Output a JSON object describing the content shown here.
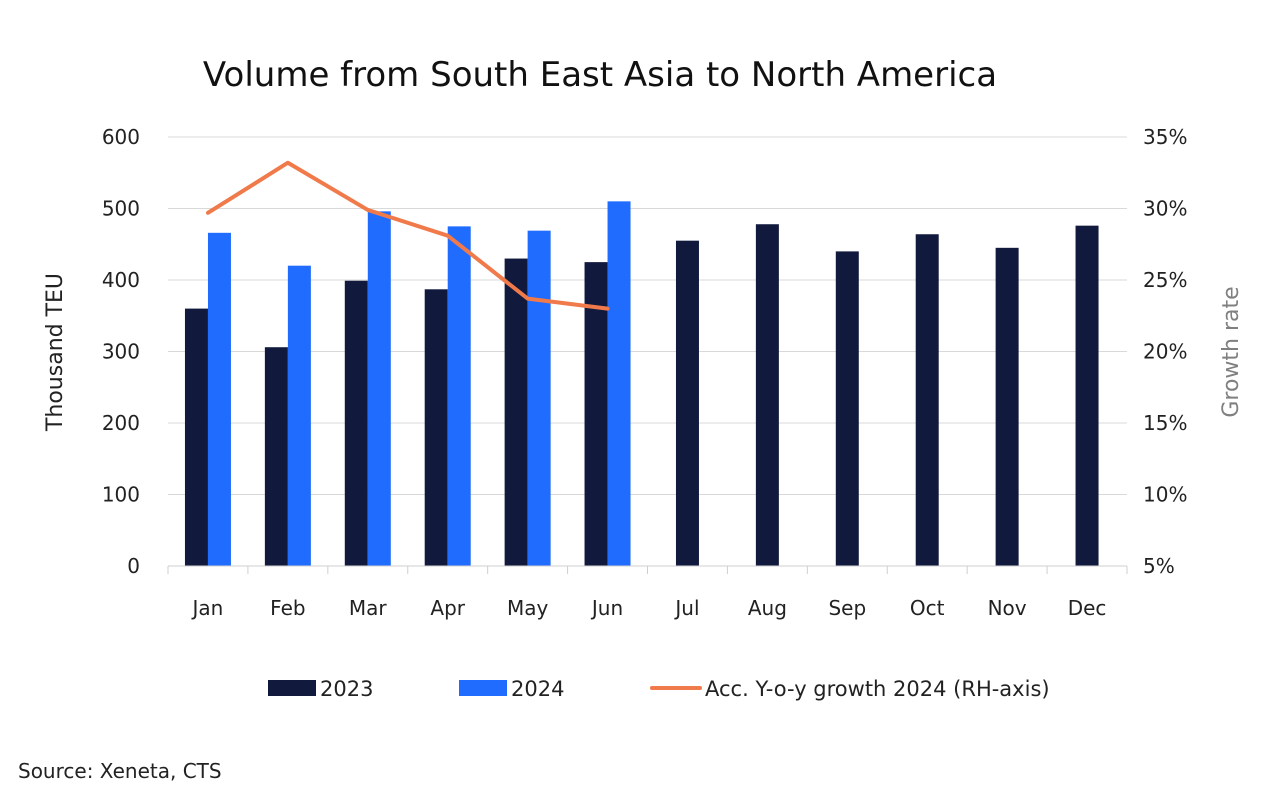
{
  "chart_data": {
    "type": "bar",
    "title": "Volume from South East Asia to North America",
    "categories": [
      "Jan",
      "Feb",
      "Mar",
      "Apr",
      "May",
      "Jun",
      "Jul",
      "Aug",
      "Sep",
      "Oct",
      "Nov",
      "Dec"
    ],
    "series": [
      {
        "name": "2023",
        "type": "bar",
        "axis": "left",
        "color": "#111a3c",
        "values": [
          360,
          306,
          399,
          387,
          430,
          425,
          455,
          478,
          440,
          464,
          445,
          476
        ]
      },
      {
        "name": "2024",
        "type": "bar",
        "axis": "left",
        "color": "#1f6cff",
        "values": [
          466,
          420,
          496,
          475,
          469,
          510,
          null,
          null,
          null,
          null,
          null,
          null
        ]
      },
      {
        "name": "Acc. Y-o-y growth 2024 (RH-axis)",
        "type": "line",
        "axis": "right",
        "color": "#f07a4a",
        "values": [
          29.7,
          33.2,
          29.9,
          28.1,
          23.7,
          23.0,
          null,
          null,
          null,
          null,
          null,
          null
        ]
      }
    ],
    "ylabel": "Thousand TEU",
    "ylim": [
      0,
      600
    ],
    "yticks": [
      "0",
      "100",
      "200",
      "300",
      "400",
      "500",
      "600"
    ],
    "y2label": "Growth rate",
    "y2lim": [
      5,
      35
    ],
    "y2ticks": [
      "5%",
      "10%",
      "15%",
      "20%",
      "25%",
      "30%",
      "35%"
    ],
    "grid": true,
    "legend_position": "bottom",
    "source": "Source: Xeneta, CTS"
  }
}
